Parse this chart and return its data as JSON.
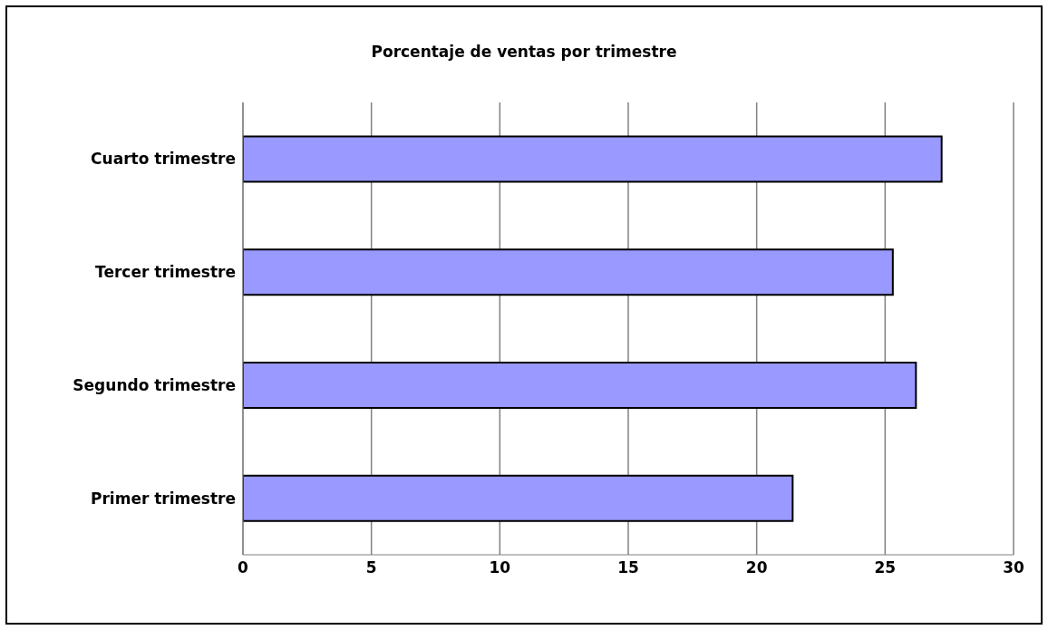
{
  "chart_data": {
    "type": "bar",
    "title": "Porcentaje de ventas por trimestre",
    "orientation": "horizontal",
    "categories": [
      "Cuarto trimestre",
      "Tercer trimestre",
      "Segundo trimestre",
      "Primer trimestre"
    ],
    "values": [
      27.2,
      25.3,
      26.2,
      21.4
    ],
    "color": "#9999ff",
    "xlim": [
      0,
      30
    ],
    "xticks": [
      0,
      5,
      10,
      15,
      20,
      25,
      30
    ],
    "grid": "x"
  }
}
